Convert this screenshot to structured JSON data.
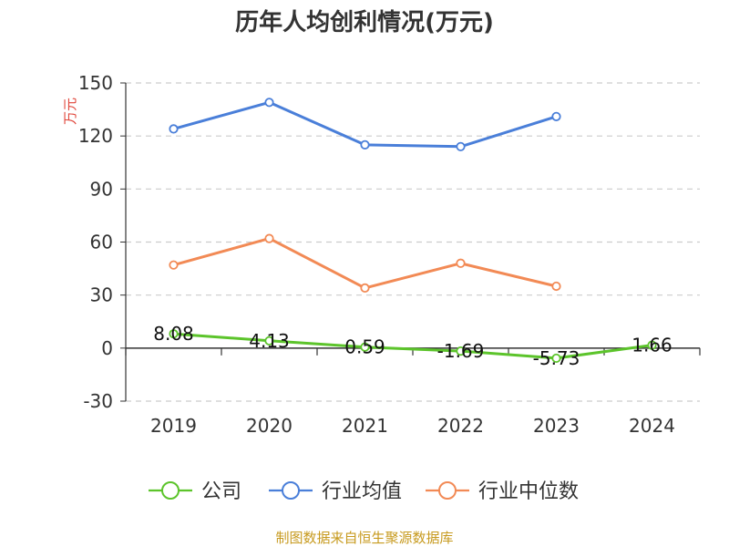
{
  "chart_data": {
    "type": "line",
    "title": "历年人均创利情况(万元)",
    "ylabel": "万元",
    "categories": [
      "2019",
      "2020",
      "2021",
      "2022",
      "2023",
      "2024"
    ],
    "ylim": [
      -30,
      150
    ],
    "yticks": [
      -30,
      0,
      30,
      60,
      90,
      120,
      150
    ],
    "grid": true,
    "legend_position": "bottom",
    "series": [
      {
        "name": "公司",
        "color": "#5cc42b",
        "values": [
          8.08,
          4.13,
          0.59,
          -1.69,
          -5.73,
          1.66
        ],
        "labels": [
          "8.08",
          "4.13",
          "0.59",
          "-1.69",
          "-5.73",
          "1.66"
        ]
      },
      {
        "name": "行业均值",
        "color": "#4a7fd9",
        "values": [
          124,
          139,
          115,
          114,
          131,
          null
        ]
      },
      {
        "name": "行业中位数",
        "color": "#f28a55",
        "values": [
          47,
          62,
          34,
          48,
          35,
          null
        ]
      }
    ]
  },
  "footer": {
    "source": "制图数据来自恒生聚源数据库"
  },
  "colors": {
    "ylabel": "#e0463b",
    "axis": "#333333",
    "grid": "#cccccc",
    "source": "#c79a1e"
  }
}
